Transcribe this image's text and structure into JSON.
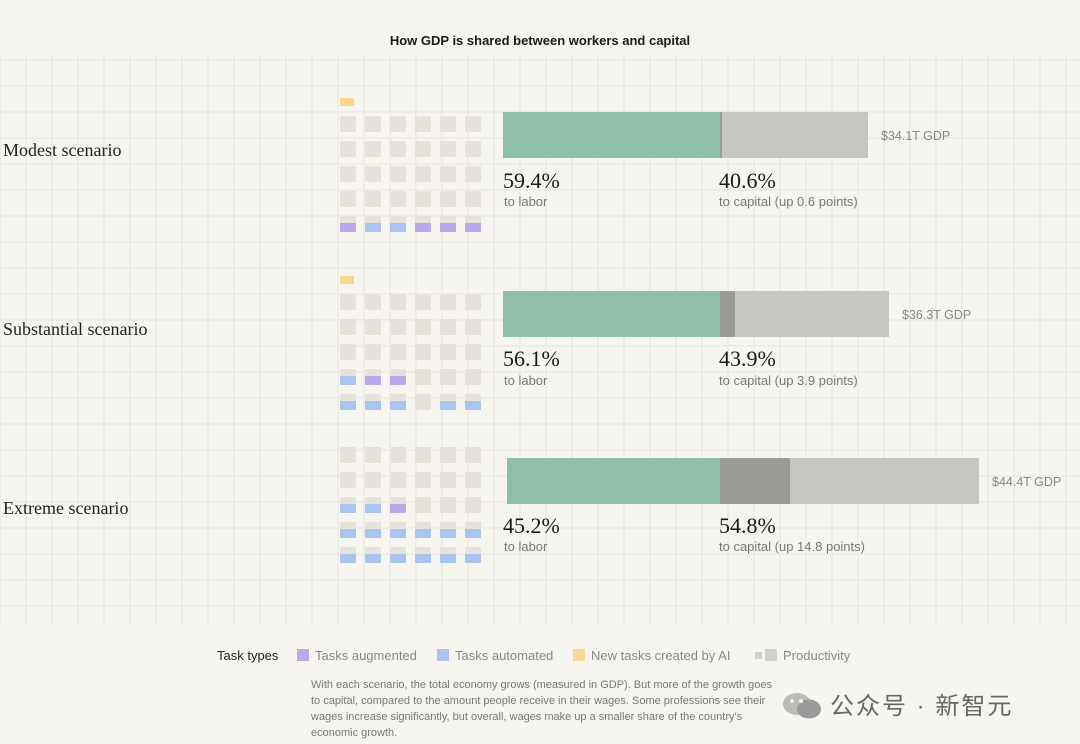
{
  "chart_data": {
    "type": "bar",
    "title": "How GDP is shared between workers and capital",
    "scenarios": [
      {
        "name": "Modest scenario",
        "labor_pct": 59.4,
        "capital_pct": 40.6,
        "labor_value": "59.4%",
        "labor_sub": "to labor",
        "capital_value": "40.6%",
        "capital_sub": "to capital (up 0.6 points)",
        "capital_increase_points": 0.6,
        "gdp_trillions": 34.1,
        "gdp_label": "$34.1T GDP",
        "new_tasks": 1,
        "tasks": [
          [
            "p",
            "p",
            "p",
            "p",
            "p",
            "p"
          ],
          [
            "p",
            "p",
            "p",
            "p",
            "p",
            "p"
          ],
          [
            "p",
            "p",
            "p",
            "p",
            "p",
            "p"
          ],
          [
            "p",
            "p",
            "p",
            "p",
            "p",
            "p"
          ],
          [
            "a",
            "u",
            "u",
            "a",
            "a",
            "a"
          ]
        ]
      },
      {
        "name": "Substantial scenario",
        "labor_pct": 56.1,
        "capital_pct": 43.9,
        "labor_value": "56.1%",
        "labor_sub": "to labor",
        "capital_value": "43.9%",
        "capital_sub": "to capital (up 3.9 points)",
        "capital_increase_points": 3.9,
        "gdp_trillions": 36.3,
        "gdp_label": "$36.3T GDP",
        "new_tasks": 1,
        "tasks": [
          [
            "p",
            "p",
            "p",
            "p",
            "p",
            "p"
          ],
          [
            "p",
            "p",
            "p",
            "p",
            "p",
            "p"
          ],
          [
            "p",
            "p",
            "p",
            "p",
            "p",
            "p"
          ],
          [
            "u",
            "a",
            "a",
            "p",
            "p",
            "p"
          ],
          [
            "u",
            "u",
            "u",
            "p",
            "u",
            "u"
          ]
        ]
      },
      {
        "name": "Extreme scenario",
        "labor_pct": 45.2,
        "capital_pct": 54.8,
        "labor_value": "45.2%",
        "labor_sub": "to labor",
        "capital_value": "54.8%",
        "capital_sub": "to capital (up 14.8 points)",
        "capital_increase_points": 14.8,
        "gdp_trillions": 44.4,
        "gdp_label": "$44.4T GDP",
        "new_tasks": 0,
        "tasks": [
          [
            "p",
            "p",
            "p",
            "p",
            "p",
            "p"
          ],
          [
            "p",
            "p",
            "p",
            "p",
            "p",
            "p"
          ],
          [
            "u",
            "u",
            "a",
            "p",
            "p",
            "p"
          ],
          [
            "u",
            "u",
            "u",
            "u",
            "u",
            "u"
          ],
          [
            "u",
            "u",
            "u",
            "u",
            "u",
            "u"
          ]
        ]
      }
    ]
  },
  "legend": {
    "title": "Task types",
    "items": [
      {
        "label": "Tasks augmented",
        "color": "#b9a8ec"
      },
      {
        "label": "Tasks automated",
        "color": "#a9c4ee"
      },
      {
        "label": "New tasks created by AI",
        "color": "#f6d98e"
      },
      {
        "label": "Productivity",
        "color": "#d2d0ca"
      }
    ]
  },
  "caption": "With each scenario, the total economy grows (measured in GDP). But more of the growth goes to capital, compared to the amount people receive in their wages. Some professions see their wages increase significantly, but overall, wages make up a smaller share of the country's economic growth.",
  "watermark": "公众号 · 新智元",
  "colors": {
    "labor": "#8fbfa8",
    "capital_base": "#c8c6c1",
    "capital_increase": "#9b9a96",
    "tile_plain": "#e4e2da",
    "augmented": "#b9a8ec",
    "automated": "#a9c4ee",
    "new_task": "#f6d98e"
  }
}
